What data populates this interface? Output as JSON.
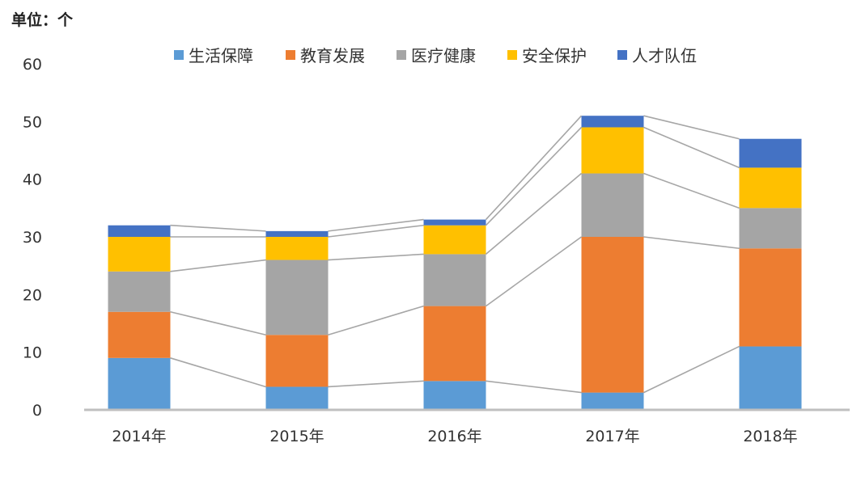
{
  "chart_data": {
    "type": "bar",
    "stacked": true,
    "unit_label": "单位：个",
    "categories": [
      "2014年",
      "2015年",
      "2016年",
      "2017年",
      "2018年"
    ],
    "series": [
      {
        "name": "生活保障",
        "color": "#5b9bd5",
        "values": [
          9,
          4,
          5,
          3,
          11
        ]
      },
      {
        "name": "教育发展",
        "color": "#ed7d31",
        "values": [
          8,
          9,
          13,
          27,
          17
        ]
      },
      {
        "name": "医疗健康",
        "color": "#a5a5a5",
        "values": [
          7,
          13,
          9,
          11,
          7
        ]
      },
      {
        "name": "安全保护",
        "color": "#ffc000",
        "values": [
          6,
          4,
          5,
          8,
          7
        ]
      },
      {
        "name": "人才队伍",
        "color": "#4472c4",
        "values": [
          2,
          1,
          1,
          2,
          5
        ]
      }
    ],
    "ylim": [
      0,
      60
    ],
    "yticks": [
      "0",
      "10",
      "20",
      "30",
      "40",
      "50",
      "60"
    ],
    "legend_position": "top",
    "grid": false,
    "series_lines": true
  }
}
